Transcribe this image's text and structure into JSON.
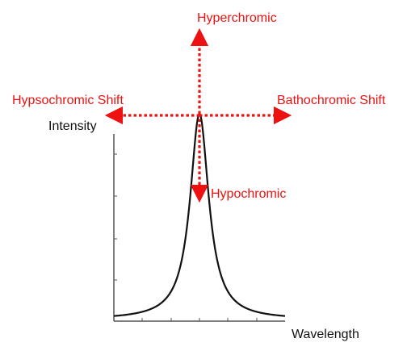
{
  "labels": {
    "hyperchromic": "Hyperchromic",
    "hypsochromic": "Hypsochromic Shift",
    "bathochromic": "Bathochromic Shift",
    "hypochromic": "Hypochromic",
    "y_axis": "Intensity",
    "x_axis": "Wavelength"
  },
  "colors": {
    "arrows": "#ee1111",
    "curve": "#111111",
    "axes": "#555555"
  },
  "curve": {
    "shape": "lorentzian peak",
    "peak_position": "center of x-axis"
  },
  "arrows": [
    "up",
    "down",
    "left",
    "right"
  ]
}
